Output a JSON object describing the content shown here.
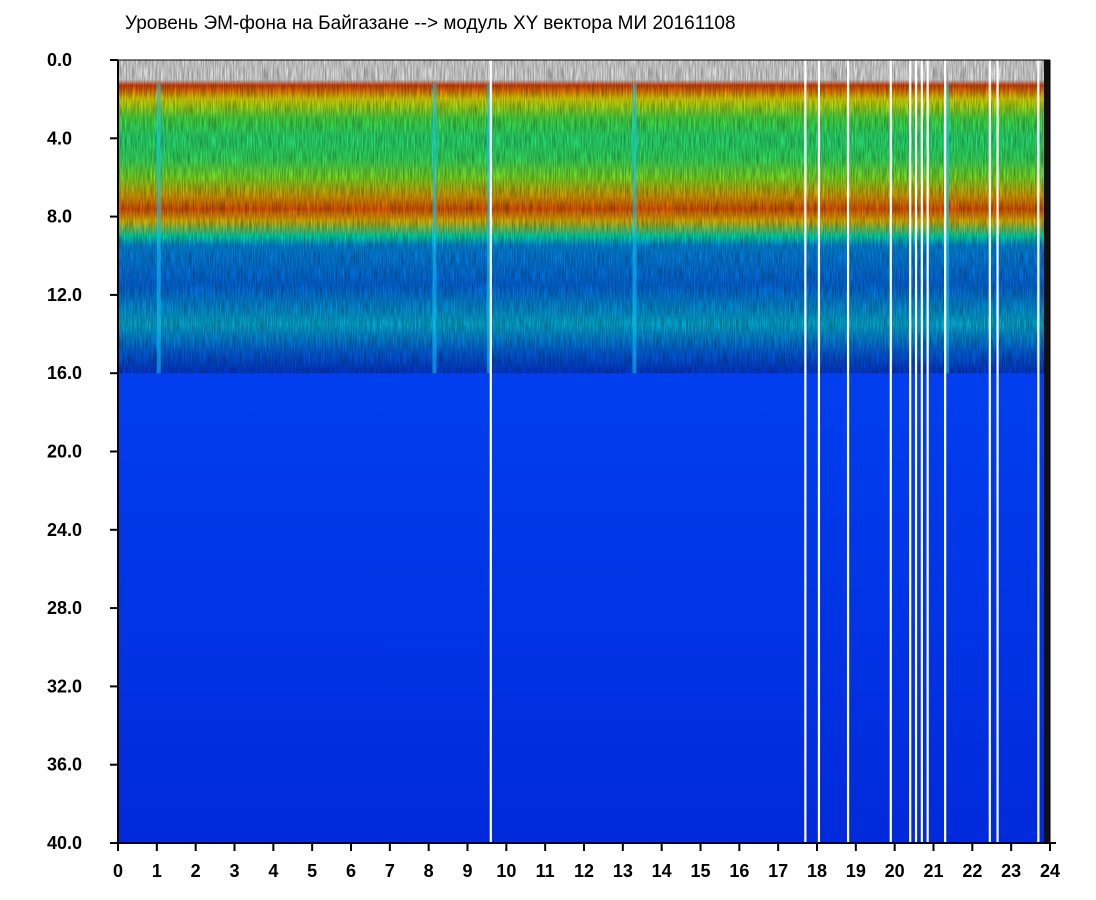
{
  "chart_data": {
    "type": "heatmap",
    "title": "Уровень ЭМ-фона на Байгазане  --> модуль XY вектора МИ  20161108",
    "xlabel": "",
    "ylabel": "",
    "x_ticks": [
      "0",
      "1",
      "2",
      "3",
      "4",
      "5",
      "6",
      "7",
      "8",
      "9",
      "10",
      "11",
      "12",
      "13",
      "14",
      "15",
      "16",
      "17",
      "18",
      "19",
      "20",
      "21",
      "22",
      "23",
      "24"
    ],
    "y_ticks": [
      "0.0",
      "4.0",
      "8.0",
      "12.0",
      "16.0",
      "20.0",
      "24.0",
      "28.0",
      "32.0",
      "36.0",
      "40.0"
    ],
    "xlim": [
      0,
      24
    ],
    "ylim": [
      0,
      40
    ],
    "y_axis_inverted": true,
    "grid": false,
    "colormap": [
      "#0016c8",
      "#0050ff",
      "#00b4ff",
      "#00ffc8",
      "#5aff3c",
      "#ffff00",
      "#ff9600",
      "#ff1e00"
    ],
    "background_color": "#ffffff",
    "intensity_profile": [
      {
        "y": 0.0,
        "level": 0.0
      },
      {
        "y": 1.0,
        "level": 0.0
      },
      {
        "y": 1.3,
        "level": 0.95
      },
      {
        "y": 2.0,
        "level": 0.72
      },
      {
        "y": 3.0,
        "level": 0.55
      },
      {
        "y": 4.0,
        "level": 0.5
      },
      {
        "y": 5.0,
        "level": 0.52
      },
      {
        "y": 6.0,
        "level": 0.62
      },
      {
        "y": 7.0,
        "level": 0.82
      },
      {
        "y": 7.6,
        "level": 0.92
      },
      {
        "y": 8.2,
        "level": 0.78
      },
      {
        "y": 9.0,
        "level": 0.42
      },
      {
        "y": 9.5,
        "level": 0.25
      },
      {
        "y": 11.5,
        "level": 0.2
      },
      {
        "y": 13.5,
        "level": 0.32
      },
      {
        "y": 15.0,
        "level": 0.18
      },
      {
        "y": 16.0,
        "level": 0.1
      },
      {
        "y": 40.0,
        "level": 0.05
      }
    ],
    "data_gaps_hours": [
      9.6,
      17.7,
      18.05,
      18.8,
      19.9,
      20.4,
      20.55,
      20.7,
      20.85,
      21.3,
      22.45,
      22.65,
      23.7
    ],
    "dip_hours": [
      1.05,
      8.15,
      9.55,
      13.3,
      21.35
    ]
  }
}
